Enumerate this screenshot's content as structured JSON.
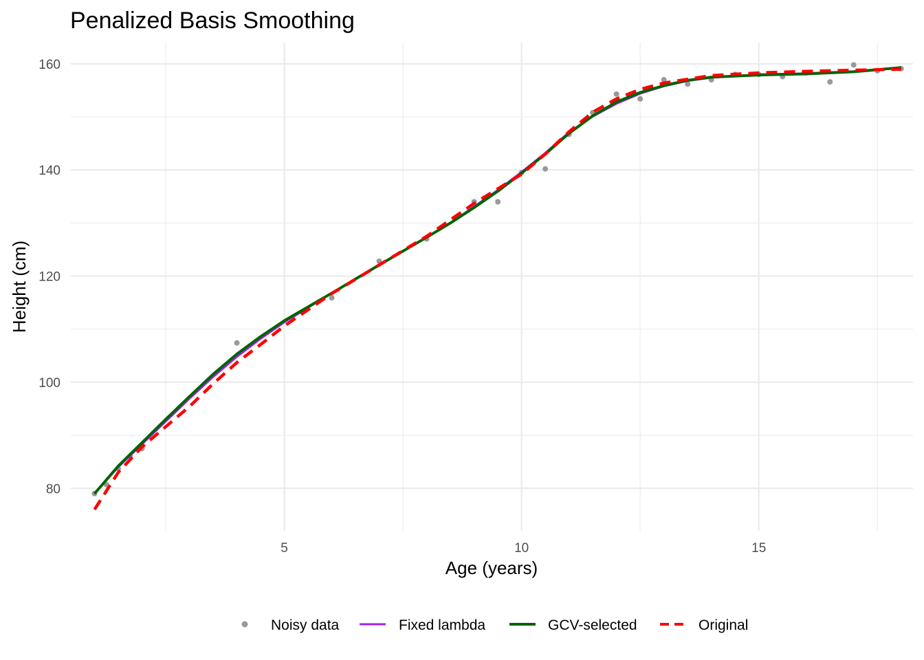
{
  "chart_data": {
    "type": "line",
    "title": "Penalized Basis Smoothing",
    "xlabel": "Age (years)",
    "ylabel": "Height (cm)",
    "xlim": [
      0.5,
      18.25
    ],
    "ylim": [
      72,
      164
    ],
    "x_ticks": [
      5,
      10,
      15
    ],
    "x_minor": [
      2.5,
      7.5,
      12.5,
      17.5
    ],
    "y_ticks": [
      80,
      100,
      120,
      140,
      160
    ],
    "y_minor": [
      90,
      110,
      130,
      150
    ],
    "grid": true,
    "legend_position": "bottom",
    "colors": {
      "points": "#999999",
      "fixed": "#A020F0",
      "gcv": "#006400",
      "original": "#FF0000",
      "grid": "#EBEBEB"
    },
    "series": [
      {
        "name": "Noisy data",
        "kind": "points",
        "x": [
          1,
          1.25,
          1.5,
          1.75,
          2,
          4,
          6,
          7,
          8,
          9,
          9.5,
          10,
          10.5,
          11,
          11.5,
          12,
          12.5,
          13,
          13.5,
          14,
          14.5,
          15,
          15.5,
          16,
          16.5,
          17,
          17.5,
          18
        ],
        "y": [
          79,
          80.7,
          83.7,
          86,
          87.5,
          107.4,
          115.9,
          122.8,
          127,
          134,
          134,
          139.5,
          140.2,
          146.7,
          150.8,
          154.3,
          153.4,
          157,
          156.2,
          157,
          158,
          158,
          157.6,
          158.3,
          156.6,
          159.8,
          158.7,
          159.1
        ]
      },
      {
        "name": "Fixed lambda",
        "kind": "line",
        "x": [
          1,
          1.5,
          2,
          2.5,
          3,
          3.5,
          4,
          4.5,
          5,
          6,
          7,
          8,
          8.5,
          9,
          9.5,
          10,
          10.5,
          11,
          11.5,
          12,
          12.5,
          13,
          13.5,
          14,
          15,
          16,
          17,
          18
        ],
        "y": [
          79,
          84,
          88.3,
          92.6,
          96.9,
          101,
          104.8,
          108.2,
          111.3,
          116.8,
          122.1,
          127.3,
          130,
          133.1,
          136.2,
          139.6,
          143.2,
          147.1,
          150.1,
          152.5,
          154.4,
          155.8,
          156.8,
          157.4,
          158,
          158.2,
          158.6,
          159.2
        ]
      },
      {
        "name": "GCV-selected",
        "kind": "line",
        "x": [
          1,
          1.5,
          2,
          2.5,
          3,
          3.5,
          4,
          4.5,
          5,
          6,
          7,
          8,
          8.5,
          9,
          9.5,
          10,
          10.5,
          11,
          11.5,
          12,
          12.5,
          13,
          13.5,
          14,
          15,
          16,
          17,
          18
        ],
        "y": [
          79,
          84.2,
          88.6,
          93,
          97.3,
          101.5,
          105.3,
          108.6,
          111.6,
          116.8,
          122.1,
          127.3,
          130,
          132.9,
          136,
          139.4,
          143,
          146.9,
          150.2,
          152.8,
          154.6,
          155.9,
          156.9,
          157.5,
          157.9,
          158.1,
          158.5,
          159.3
        ]
      },
      {
        "name": "Original",
        "kind": "dashed",
        "x": [
          1,
          1.5,
          2,
          2.5,
          3,
          3.5,
          4,
          4.5,
          5,
          6,
          7,
          8,
          9,
          10,
          10.5,
          11,
          11.5,
          12,
          12.5,
          13,
          14,
          15,
          16,
          17,
          18
        ],
        "y": [
          76,
          83,
          87.8,
          91.6,
          95.4,
          99.7,
          103.7,
          107.1,
          110.6,
          116.7,
          122.1,
          127.5,
          133.7,
          139.2,
          143,
          147.2,
          150.9,
          153.4,
          155.2,
          156.4,
          157.8,
          158.3,
          158.6,
          158.8,
          159
        ]
      }
    ]
  }
}
